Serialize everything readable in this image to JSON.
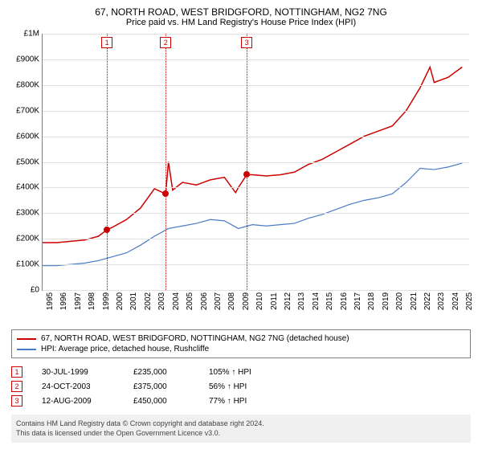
{
  "title": "67, NORTH ROAD, WEST BRIDGFORD, NOTTINGHAM, NG2 7NG",
  "subtitle": "Price paid vs. HM Land Registry's House Price Index (HPI)",
  "chart": {
    "type": "line",
    "background_color": "#ffffff",
    "grid_color": "#e0e0e0",
    "axis_color": "#808080",
    "xlim": [
      1995,
      2025.5
    ],
    "ylim": [
      0,
      1000000
    ],
    "yticks": [
      0,
      100000,
      200000,
      300000,
      400000,
      500000,
      600000,
      700000,
      800000,
      900000,
      1000000
    ],
    "ytick_labels": [
      "£0",
      "£100K",
      "£200K",
      "£300K",
      "£400K",
      "£500K",
      "£600K",
      "£700K",
      "£800K",
      "£900K",
      "£1M"
    ],
    "xticks": [
      1995,
      1996,
      1997,
      1998,
      1999,
      2000,
      2001,
      2002,
      2003,
      2004,
      2005,
      2006,
      2007,
      2008,
      2009,
      2010,
      2011,
      2012,
      2013,
      2014,
      2015,
      2016,
      2017,
      2018,
      2019,
      2020,
      2021,
      2022,
      2023,
      2024,
      2025
    ],
    "tick_fontsize": 10,
    "series": {
      "property": {
        "color": "#cc0000",
        "line_width": 1.5,
        "points": [
          [
            1995,
            185000
          ],
          [
            1996,
            185000
          ],
          [
            1997,
            190000
          ],
          [
            1998,
            195000
          ],
          [
            1999,
            210000
          ],
          [
            1999.6,
            235000
          ],
          [
            2000,
            245000
          ],
          [
            2001,
            275000
          ],
          [
            2002,
            320000
          ],
          [
            2003,
            395000
          ],
          [
            2003.8,
            375000
          ],
          [
            2004,
            500000
          ],
          [
            2004.3,
            390000
          ],
          [
            2005,
            420000
          ],
          [
            2006,
            410000
          ],
          [
            2007,
            430000
          ],
          [
            2008,
            440000
          ],
          [
            2008.8,
            380000
          ],
          [
            2009,
            400000
          ],
          [
            2009.6,
            450000
          ],
          [
            2010,
            450000
          ],
          [
            2011,
            445000
          ],
          [
            2012,
            450000
          ],
          [
            2013,
            460000
          ],
          [
            2014,
            490000
          ],
          [
            2015,
            510000
          ],
          [
            2016,
            540000
          ],
          [
            2017,
            570000
          ],
          [
            2018,
            600000
          ],
          [
            2019,
            620000
          ],
          [
            2020,
            640000
          ],
          [
            2021,
            700000
          ],
          [
            2022,
            790000
          ],
          [
            2022.7,
            870000
          ],
          [
            2023,
            810000
          ],
          [
            2024,
            830000
          ],
          [
            2025,
            870000
          ]
        ]
      },
      "hpi": {
        "color": "#4a7bc4",
        "line_width": 1.2,
        "points": [
          [
            1995,
            95000
          ],
          [
            1996,
            95000
          ],
          [
            1997,
            100000
          ],
          [
            1998,
            105000
          ],
          [
            1999,
            115000
          ],
          [
            2000,
            130000
          ],
          [
            2001,
            145000
          ],
          [
            2002,
            175000
          ],
          [
            2003,
            210000
          ],
          [
            2004,
            240000
          ],
          [
            2005,
            250000
          ],
          [
            2006,
            260000
          ],
          [
            2007,
            275000
          ],
          [
            2008,
            270000
          ],
          [
            2009,
            240000
          ],
          [
            2010,
            255000
          ],
          [
            2011,
            250000
          ],
          [
            2012,
            255000
          ],
          [
            2013,
            260000
          ],
          [
            2014,
            280000
          ],
          [
            2015,
            295000
          ],
          [
            2016,
            315000
          ],
          [
            2017,
            335000
          ],
          [
            2018,
            350000
          ],
          [
            2019,
            360000
          ],
          [
            2020,
            375000
          ],
          [
            2021,
            420000
          ],
          [
            2022,
            475000
          ],
          [
            2023,
            470000
          ],
          [
            2024,
            480000
          ],
          [
            2025,
            495000
          ]
        ]
      }
    },
    "event_lines": [
      {
        "x": 1999.6,
        "color": "#cc0000"
      },
      {
        "x": 2003.8,
        "color": "#cc0000"
      },
      {
        "x": 2009.6,
        "color": "#cc0000"
      }
    ],
    "markers": [
      {
        "n": "1",
        "x": 1999.6,
        "y": 235000
      },
      {
        "n": "2",
        "x": 2003.8,
        "y": 375000
      },
      {
        "n": "3",
        "x": 2009.6,
        "y": 450000
      }
    ]
  },
  "legend": {
    "items": [
      {
        "color": "#cc0000",
        "label": "67, NORTH ROAD, WEST BRIDGFORD, NOTTINGHAM, NG2 7NG (detached house)"
      },
      {
        "color": "#4a7bc4",
        "label": "HPI: Average price, detached house, Rushcliffe"
      }
    ]
  },
  "sales": [
    {
      "n": "1",
      "date": "30-JUL-1999",
      "price": "£235,000",
      "pct": "105% ↑ HPI"
    },
    {
      "n": "2",
      "date": "24-OCT-2003",
      "price": "£375,000",
      "pct": "56% ↑ HPI"
    },
    {
      "n": "3",
      "date": "12-AUG-2009",
      "price": "£450,000",
      "pct": "77% ↑ HPI"
    }
  ],
  "footer": {
    "line1": "Contains HM Land Registry data © Crown copyright and database right 2024.",
    "line2": "This data is licensed under the Open Government Licence v3.0."
  }
}
